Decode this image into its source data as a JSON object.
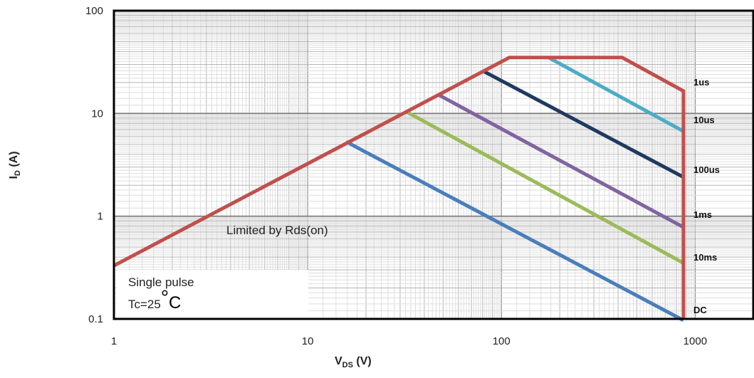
{
  "chart_data": {
    "type": "line",
    "x_scale": "log",
    "y_scale": "log",
    "xlim": [
      1,
      1000
    ],
    "ylim": [
      0.1,
      100
    ],
    "xlabel": {
      "main": "V",
      "sub": "DS",
      "unit": " (V)"
    },
    "ylabel": {
      "main": "I",
      "sub": "D",
      "unit": " (A)"
    },
    "x_ticks": [
      "1",
      "10",
      "100",
      "1000"
    ],
    "y_ticks": [
      "100",
      "10",
      "1",
      "0.1"
    ],
    "grid": true,
    "annotations": {
      "rds_limit": "Limited by Rds(on)",
      "conditions_line1": "Single pulse",
      "conditions_line2": "Tc=25",
      "degree_symbol": "°",
      "conditions_unit": "C"
    },
    "series": [
      {
        "name": "DC",
        "color": "#4a7ebb",
        "x": [
          15.8,
          870
        ],
        "y": [
          5.3,
          0.097
        ]
      },
      {
        "name": "10ms",
        "color": "#9bbb59",
        "x": [
          32,
          870
        ],
        "y": [
          10.5,
          0.35
        ]
      },
      {
        "name": "1ms",
        "color": "#8064a2",
        "x": [
          47,
          870
        ],
        "y": [
          15.3,
          0.78
        ]
      },
      {
        "name": "100us",
        "color": "#1f3a5f",
        "x": [
          80,
          870
        ],
        "y": [
          26,
          2.4
        ]
      },
      {
        "name": "10us",
        "color": "#4bacc6",
        "x": [
          175,
          870
        ],
        "y": [
          35,
          6.7
        ]
      },
      {
        "name": "1us",
        "color": "#c0504d",
        "x": [
          1,
          110,
          420,
          870,
          870
        ],
        "y": [
          0.33,
          35,
          35,
          16.5,
          0.1
        ]
      }
    ]
  }
}
